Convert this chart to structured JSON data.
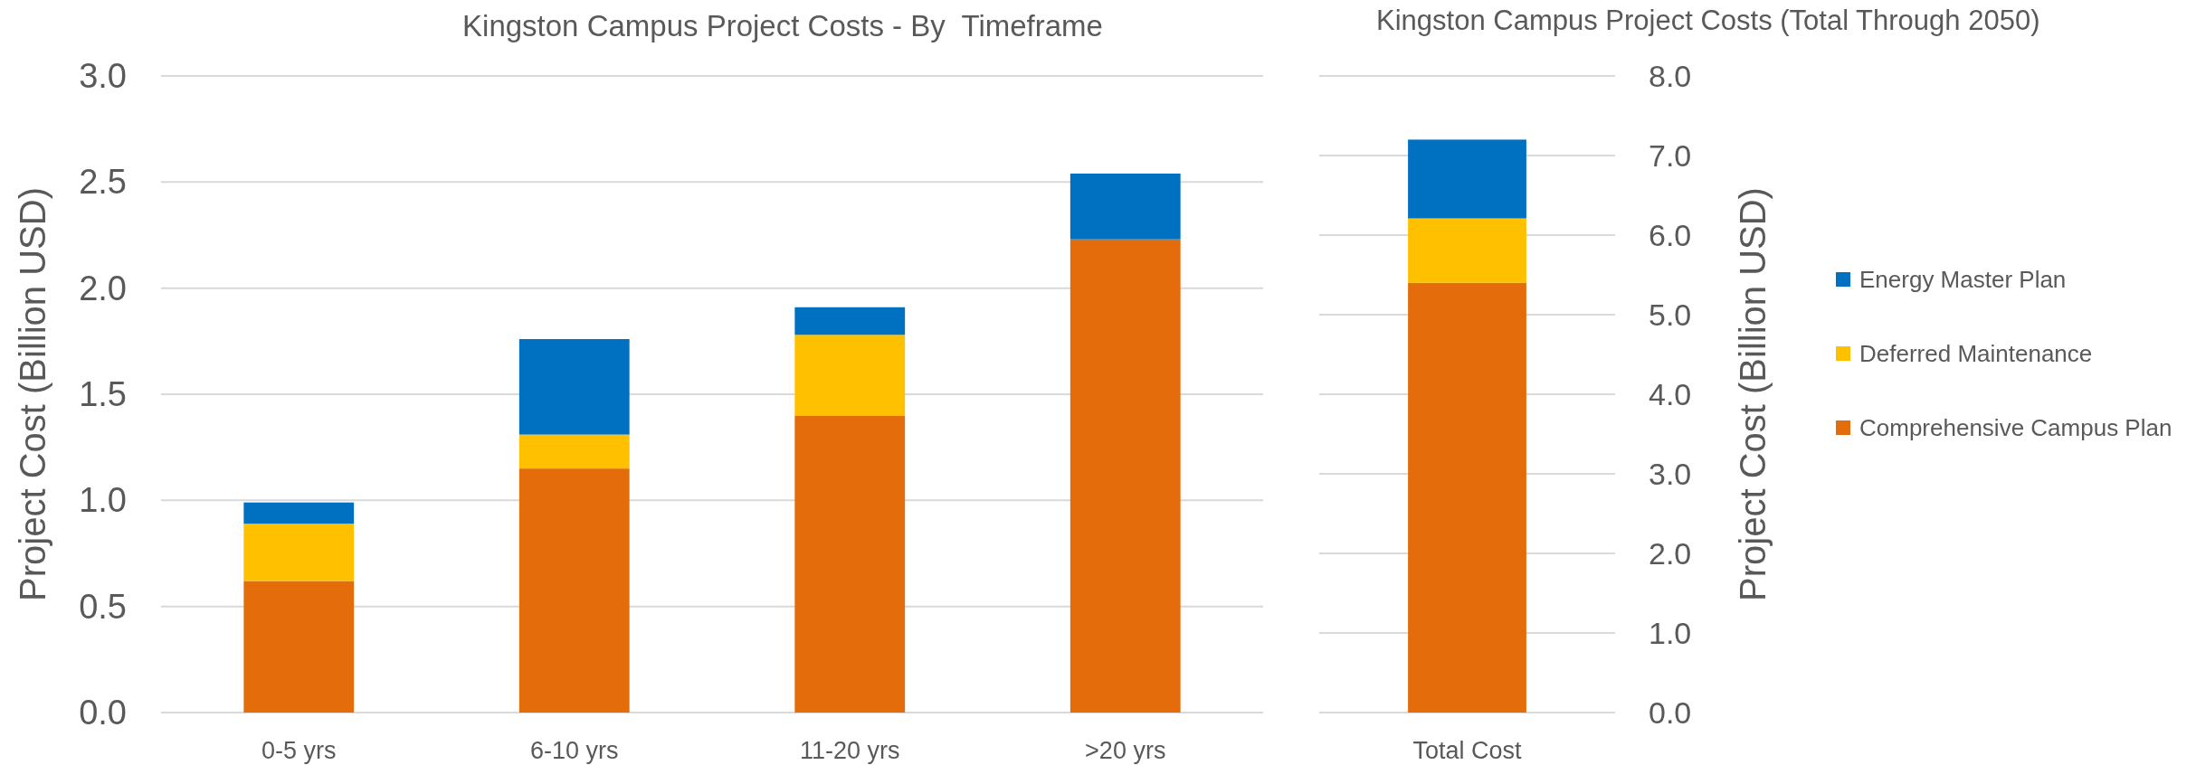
{
  "chart_data": [
    {
      "type": "bar",
      "title": "Kingston Campus Project Costs - By  Timeframe",
      "ylabel": "Project Cost (Billion USD)",
      "categories": [
        "0-5 yrs",
        "6-10 yrs",
        "11-20 yrs",
        ">20 yrs"
      ],
      "stacked": true,
      "series": [
        {
          "color": "#e46c0a",
          "values": [
            0.62,
            1.15,
            1.4,
            2.23
          ]
        },
        {
          "color": "#ffc000",
          "values": [
            0.27,
            0.16,
            0.38,
            null
          ]
        },
        {
          "color": "#0070c0",
          "values": [
            0.1,
            0.45,
            0.13,
            0.31
          ]
        }
      ],
      "ylim": [
        0,
        3
      ],
      "yticks": [
        {
          "value": 0,
          "label": "0.0"
        },
        {
          "value": 0.5,
          "label": "0.5"
        },
        {
          "value": 1,
          "label": "1.0"
        },
        {
          "value": 1.5,
          "label": "1.5"
        },
        {
          "value": 2,
          "label": "2.0"
        },
        {
          "value": 2.5,
          "label": "2.5"
        },
        {
          "value": 3,
          "label": "3.0"
        }
      ],
      "grid": true
    },
    {
      "type": "bar",
      "title": "Kingston Campus Project Costs (Total Through 2050)",
      "y2label": "Project Cost (Billion USD)",
      "categories": [
        "Total Cost"
      ],
      "stacked": true,
      "series": [
        {
          "name": "Comprehensive Campus Plan",
          "color": "#e46c0a",
          "values": [
            5.4
          ],
          "axis": "y2"
        },
        {
          "name": "Deferred Maintenance",
          "color": "#ffc000",
          "values": [
            0.81
          ],
          "axis": "y2"
        },
        {
          "name": "Energy Master Plan",
          "color": "#0070c0",
          "values": [
            0.99
          ],
          "axis": "y2"
        }
      ],
      "y2lim": [
        0,
        8
      ],
      "y2ticks": [
        {
          "value": 0,
          "label": "0.0"
        },
        {
          "value": 1,
          "label": "1.0"
        },
        {
          "value": 2,
          "label": "2.0"
        },
        {
          "value": 3,
          "label": "3.0"
        },
        {
          "value": 4,
          "label": "4.0"
        },
        {
          "value": 5,
          "label": "5.0"
        },
        {
          "value": 6,
          "label": "6.0"
        },
        {
          "value": 7,
          "label": "7.0"
        },
        {
          "value": 8,
          "label": "8.0"
        }
      ],
      "grid": true,
      "legend": "right"
    }
  ]
}
